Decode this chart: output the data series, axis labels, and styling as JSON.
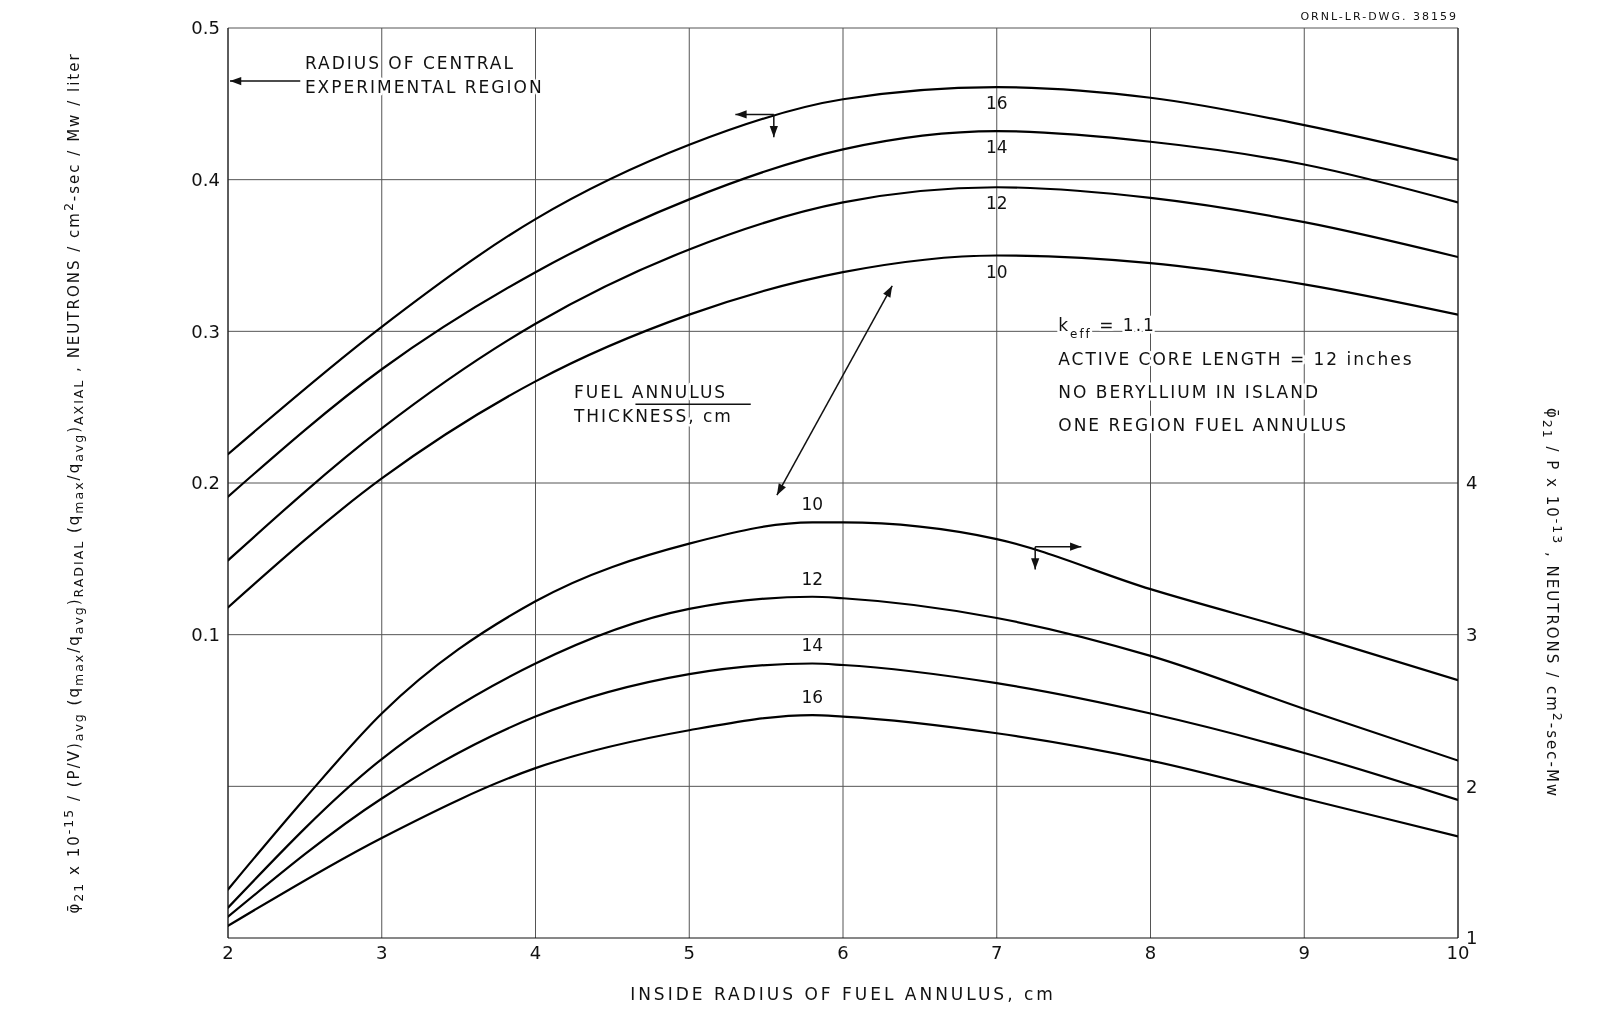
{
  "chart_data": {
    "type": "line",
    "xlabel": "INSIDE RADIUS OF FUEL ANNULUS, cm",
    "ylabel": "φ̄$_{21}$ x 10$^{-15}$ / (P/V)$_{avg}$ (q$_{max}$/q$_{avg}$)$_{RADIAL}$ (q$_{max}$/q$_{avg}$)$_{AXIAL}$ , NEUTRONS / cm$^{2}$-sec / Mw / liter",
    "y2label": "φ̄$_{21}$ / P x 10$^{-13}$ , NEUTRONS / cm$^{2}$-sec-Mw",
    "annotations": [
      "ORNL-LR-DWG. 38159",
      "RADIUS OF CENTRAL EXPERIMENTAL REGION",
      "FUEL ANNULUS THICKNESS, cm",
      "k$_{eff}$ = 1.1",
      "ACTIVE CORE LENGTH = 12 inches",
      "NO BERYLLIUM IN ISLAND",
      "ONE REGION FUEL ANNULUS"
    ],
    "xlim": [
      2,
      10
    ],
    "xticks": [
      2,
      3,
      4,
      5,
      6,
      7,
      8,
      9,
      10
    ],
    "ylim": [
      -0.1,
      0.5
    ],
    "yticks": [
      {
        "value": 0,
        "label": null
      },
      0.1,
      0.2,
      0.3,
      0.4,
      0.5
    ],
    "y2lim": [
      1,
      7
    ],
    "y2ticks": [
      1,
      2,
      3,
      4
    ],
    "grid": true,
    "marker": "none",
    "line_style": "solid",
    "series": [
      {
        "name": "16",
        "color": "#000000",
        "axis": "y",
        "x": [
          2,
          3,
          4,
          5,
          6,
          7,
          8,
          9,
          10
        ],
        "values": [
          0.219,
          0.303,
          0.374,
          0.423,
          0.453,
          0.461,
          0.454,
          0.436,
          0.413
        ]
      },
      {
        "name": "14",
        "color": "#000000",
        "axis": "y",
        "x": [
          2,
          3,
          4,
          5,
          6,
          7,
          8,
          9,
          10
        ],
        "values": [
          0.191,
          0.275,
          0.339,
          0.387,
          0.42,
          0.432,
          0.425,
          0.41,
          0.385
        ]
      },
      {
        "name": "12",
        "color": "#000000",
        "axis": "y",
        "x": [
          2,
          3,
          4,
          5,
          6,
          7,
          8,
          9,
          10
        ],
        "values": [
          0.149,
          0.236,
          0.305,
          0.354,
          0.385,
          0.395,
          0.388,
          0.372,
          0.349
        ]
      },
      {
        "name": "10",
        "color": "#000000",
        "axis": "y",
        "x": [
          2,
          3,
          4,
          5,
          6,
          7,
          8,
          9,
          10
        ],
        "values": [
          0.118,
          0.203,
          0.267,
          0.311,
          0.339,
          0.35,
          0.345,
          0.331,
          0.311
        ]
      },
      {
        "name": "10",
        "color": "#000000",
        "axis": "y2",
        "x": [
          2,
          2.5,
          3,
          4,
          5,
          5.8,
          6,
          7,
          8,
          9,
          10
        ],
        "values": [
          1.32,
          1.92,
          2.48,
          3.22,
          3.6,
          3.74,
          3.74,
          3.63,
          3.3,
          3.01,
          2.7
        ]
      },
      {
        "name": "12",
        "color": "#000000",
        "axis": "y2",
        "x": [
          2,
          3,
          4,
          5,
          5.8,
          6,
          7,
          8,
          9,
          10
        ],
        "values": [
          1.2,
          2.18,
          2.81,
          3.17,
          3.25,
          3.24,
          3.11,
          2.86,
          2.51,
          2.17
        ]
      },
      {
        "name": "14",
        "color": "#000000",
        "axis": "y2",
        "x": [
          2,
          3,
          4,
          5,
          5.8,
          6,
          7,
          8,
          9,
          10
        ],
        "values": [
          1.14,
          1.92,
          2.46,
          2.74,
          2.81,
          2.8,
          2.68,
          2.48,
          2.22,
          1.91
        ]
      },
      {
        "name": "16",
        "color": "#000000",
        "axis": "y2",
        "x": [
          2,
          3,
          4,
          5,
          5.8,
          6,
          7,
          8,
          9,
          10
        ],
        "values": [
          1.08,
          1.66,
          2.12,
          2.37,
          2.47,
          2.46,
          2.35,
          2.17,
          1.92,
          1.67
        ]
      }
    ]
  }
}
